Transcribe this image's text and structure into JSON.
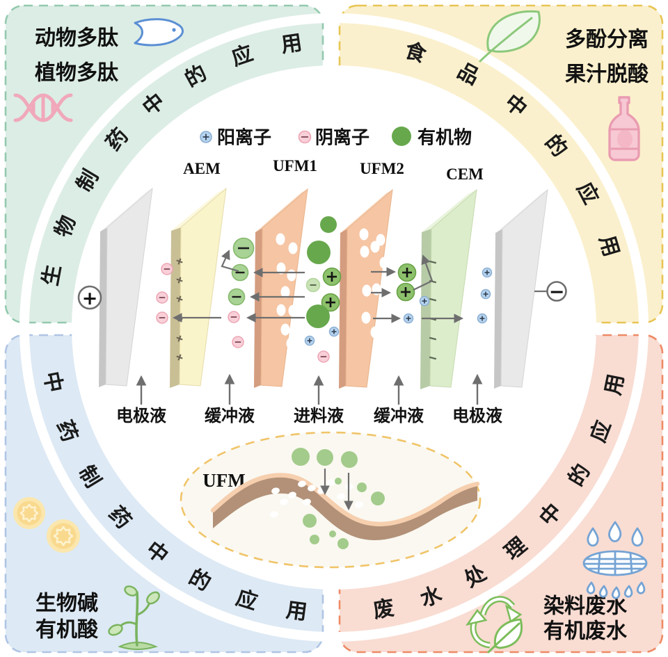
{
  "legend": {
    "items": [
      {
        "icon": "cation-icon",
        "label": "阳离子",
        "color": "#b5d3ef"
      },
      {
        "icon": "anion-icon",
        "label": "阴离子",
        "color": "#f9cfd8"
      },
      {
        "icon": "organic-icon",
        "label": "有机物",
        "color": "#67a84c"
      }
    ]
  },
  "stack": {
    "membranes": [
      {
        "label": "AEM",
        "color": "#faf4cb"
      },
      {
        "label": "UFM1",
        "color": "#f6c5a3"
      },
      {
        "label": "UFM2",
        "color": "#f6c5a3"
      },
      {
        "label": "CEM",
        "color": "#dcedcc"
      }
    ],
    "electrode_color": "#e9e9e9",
    "anode_symbol": "+",
    "cathode_symbol": "−",
    "solution_labels": [
      "电极液",
      "缓冲液",
      "进料液",
      "缓冲液",
      "电极液"
    ]
  },
  "ufm_inset": {
    "label": "UFM"
  },
  "quadrants": [
    {
      "id": "top-left",
      "arc_label": "生物制药中的应用",
      "lines": [
        "动物多肽",
        "植物多肽"
      ],
      "icons": [
        "fish-icon",
        "dna-icon"
      ],
      "fill": "#dcede5",
      "border": "#93c9ae"
    },
    {
      "id": "top-right",
      "arc_label": "食品中的应用",
      "lines": [
        "多酚分离",
        "果汁脱酸"
      ],
      "icons": [
        "leaf-icon",
        "bottle-icon"
      ],
      "fill": "#fbf0cd",
      "border": "#e7c554"
    },
    {
      "id": "bottom-left",
      "arc_label": "中药制药中的应用",
      "lines": [
        "生物碱",
        "有机酸"
      ],
      "icons": [
        "pills-icon",
        "sprout-icon"
      ],
      "fill": "#dde9f4",
      "border": "#afc4e4"
    },
    {
      "id": "bottom-right",
      "arc_label": "废水处理中的应用",
      "lines": [
        "染料废水",
        "有机废水"
      ],
      "icons": [
        "water-filter-icon",
        "recycle-icon"
      ],
      "fill": "#f9dcd2",
      "border": "#ee8a65"
    }
  ]
}
